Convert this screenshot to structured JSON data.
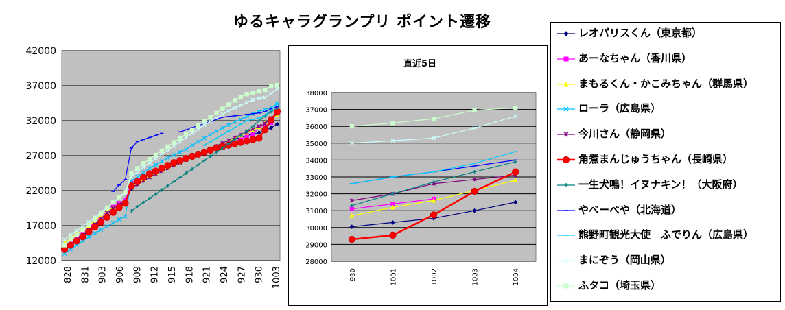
{
  "title": "ゆるキャラグランプリ ポイント遷移",
  "chart_data": [
    {
      "type": "line",
      "title": "",
      "ylim": [
        12000,
        42000
      ],
      "yticks": [
        12000,
        17000,
        22000,
        27000,
        32000,
        37000,
        42000
      ],
      "xtick_labels": [
        "828",
        "831",
        "903",
        "906",
        "909",
        "912",
        "915",
        "918",
        "921",
        "924",
        "927",
        "930",
        "1003"
      ],
      "grid": true,
      "background": "#c0c0c0",
      "series": [
        {
          "name": "レオパリスくん（東京都）",
          "color": "#000080",
          "marker": "diamond",
          "values": [
            13500,
            14200,
            15000,
            15600,
            16200,
            17000,
            17800,
            18600,
            19300,
            19800,
            20300,
            22300,
            23000,
            23600,
            24100,
            24600,
            25000,
            25500,
            25900,
            26200,
            26500,
            26900,
            27200,
            27600,
            28000,
            28300,
            28700,
            29000,
            29300,
            29600,
            29900,
            30100,
            30300,
            30600,
            31000,
            31500
          ]
        },
        {
          "name": "あーなちゃん（香川県）",
          "color": "#ff00ff",
          "marker": "square",
          "values": [
            13800,
            14500,
            15200,
            15900,
            16600,
            17600,
            18300,
            19000,
            19700,
            20200,
            20700,
            23100,
            23500,
            24000,
            24400,
            24800,
            25200,
            25600,
            26000,
            26300,
            26600,
            27000,
            27300,
            27600,
            27900,
            28200,
            28500,
            28800,
            29100,
            29400,
            29700,
            30000,
            31100,
            31400,
            31700,
            33200
          ]
        },
        {
          "name": "まもるくん・かこみちゃん（群馬県）",
          "color": "#ffff00",
          "marker": "triangle",
          "values": [
            14500,
            15200,
            15800,
            16400,
            17000,
            17700,
            18400,
            19100,
            19600,
            20000,
            20400,
            22600,
            23100,
            23600,
            24100,
            24500,
            24900,
            25300,
            25700,
            26100,
            26500,
            26900,
            27300,
            27600,
            28000,
            28300,
            28700,
            29100,
            29500,
            29900,
            30300,
            30700,
            31100,
            31700,
            32200,
            32800
          ]
        },
        {
          "name": "ローラ（広島県）",
          "color": "#00c0ff",
          "marker": "x",
          "values": [
            13000,
            13600,
            14200,
            14800,
            15400,
            15900,
            16400,
            16900,
            17400,
            17900,
            18300,
            23400,
            24000,
            24600,
            25200,
            25700,
            26200,
            26700,
            27100,
            27500,
            27900,
            28500,
            29000,
            29500,
            30000,
            30500,
            31000,
            31400,
            31800,
            32200,
            32600,
            33000,
            33300,
            33600,
            33900,
            34400
          ]
        },
        {
          "name": "今川さん（静岡県）",
          "color": "#800080",
          "marker": "star",
          "values": [
            13600,
            14300,
            15000,
            15700,
            16400,
            17200,
            18000,
            18800,
            19500,
            20000,
            20500,
            22400,
            22900,
            23400,
            23900,
            24400,
            24800,
            25200,
            25600,
            26000,
            26400,
            26800,
            27200,
            27600,
            28000,
            28400,
            28800,
            29200,
            29600,
            30000,
            30400,
            30800,
            31200,
            31600,
            32400,
            33000
          ]
        },
        {
          "name": "角煮まんじゅうちゃん（長崎県）",
          "color": "#ff0000",
          "marker": "circle",
          "values": [
            13600,
            14200,
            14800,
            15400,
            16100,
            16800,
            17500,
            18200,
            18900,
            19600,
            20200,
            22700,
            23300,
            23900,
            24400,
            24800,
            25200,
            25600,
            26000,
            26300,
            26600,
            26900,
            27200,
            27500,
            27800,
            28100,
            28300,
            28500,
            28700,
            28900,
            29100,
            29300,
            29500,
            30700,
            32100,
            33300
          ]
        },
        {
          "name": "一生犬鳴！イヌナキン！（大阪府）",
          "color": "#008080",
          "marker": "plus",
          "values": [
            null,
            null,
            null,
            null,
            null,
            null,
            null,
            null,
            null,
            null,
            null,
            19100,
            19700,
            20300,
            20900,
            21500,
            22100,
            22700,
            23300,
            23900,
            24500,
            25100,
            25700,
            26300,
            26900,
            27500,
            28100,
            28700,
            29300,
            29900,
            30500,
            31200,
            32000,
            32700,
            33300,
            33800
          ]
        },
        {
          "name": "やべーべや（北海道）",
          "color": "#0000ff",
          "marker": "dash",
          "values": [
            null,
            null,
            null,
            null,
            null,
            null,
            null,
            null,
            21900,
            22800,
            23600,
            28100,
            29000,
            29300,
            29600,
            29900,
            30200,
            null,
            null,
            30400,
            30700,
            31000,
            31300,
            31600,
            31900,
            32200,
            32500,
            32600,
            32700,
            32800,
            32900,
            33000,
            33100,
            33300,
            33700,
            34000
          ]
        },
        {
          "name": "熊野町観光大使　ふでりん（広島県）",
          "color": "#00ccff",
          "marker": "dash",
          "values": [
            null,
            null,
            null,
            null,
            null,
            null,
            null,
            null,
            null,
            null,
            null,
            null,
            null,
            null,
            null,
            null,
            null,
            null,
            null,
            null,
            null,
            null,
            null,
            28500,
            29000,
            29500,
            30000,
            30500,
            31000,
            31500,
            32000,
            32200,
            32400,
            32800,
            33500,
            34500
          ]
        },
        {
          "name": "まにぞう（岡山県）",
          "color": "#ccffff",
          "marker": "x",
          "values": [
            15000,
            15700,
            16300,
            16900,
            17500,
            18200,
            18900,
            19600,
            20300,
            21000,
            21600,
            24000,
            24700,
            25400,
            26000,
            26600,
            27200,
            27800,
            28400,
            29000,
            29600,
            30200,
            30800,
            31400,
            31900,
            32400,
            32900,
            33400,
            33800,
            34200,
            34600,
            35000,
            35200,
            35300,
            35900,
            36600
          ]
        },
        {
          "name": "ふタコ（埼玉県）",
          "color": "#ccffcc",
          "marker": "square",
          "values": [
            14200,
            15000,
            15700,
            16400,
            17100,
            17900,
            18700,
            19500,
            20300,
            21100,
            21800,
            24500,
            25200,
            25900,
            26500,
            27100,
            27700,
            28300,
            28900,
            29500,
            30100,
            30700,
            31300,
            31900,
            32500,
            33100,
            33700,
            34300,
            34900,
            35400,
            35800,
            36000,
            36200,
            36400,
            36900,
            37100
          ]
        }
      ]
    },
    {
      "type": "line",
      "title": "直近5日",
      "ylim": [
        28000,
        38000
      ],
      "yticks": [
        28000,
        29000,
        30000,
        31000,
        32000,
        33000,
        34000,
        35000,
        36000,
        37000,
        38000
      ],
      "categories": [
        "930",
        "1001",
        "1002",
        "1003",
        "1004"
      ],
      "grid": true,
      "background": "#c0c0c0",
      "series": [
        {
          "name": "レオパリスくん（東京都）",
          "color": "#000080",
          "marker": "diamond",
          "values": [
            30050,
            30300,
            30550,
            31000,
            31500
          ]
        },
        {
          "name": "あーなちゃん（香川県）",
          "color": "#ff00ff",
          "marker": "square",
          "values": [
            31100,
            31400,
            31700,
            null,
            null
          ]
        },
        {
          "name": "まもるくん・かこみちゃん（群馬県）",
          "color": "#ffff00",
          "marker": "triangle",
          "values": [
            30700,
            31200,
            31600,
            32200,
            32800
          ]
        },
        {
          "name": "ローラ（広島県）",
          "color": "#00c0ff",
          "marker": "x",
          "values": [
            null,
            null,
            null,
            null,
            null
          ]
        },
        {
          "name": "今川さん（静岡県）",
          "color": "#800080",
          "marker": "star",
          "values": [
            31600,
            32000,
            32600,
            32850,
            33100
          ]
        },
        {
          "name": "角煮まんじゅうちゃん（長崎県）",
          "color": "#ff0000",
          "marker": "circle",
          "values": [
            29300,
            29550,
            30750,
            32150,
            33300
          ]
        },
        {
          "name": "一生犬鳴！イヌナキン！（大阪府）",
          "color": "#008080",
          "marker": "plus",
          "values": [
            31300,
            32000,
            32700,
            33300,
            33900
          ]
        },
        {
          "name": "やべーべや（北海道）",
          "color": "#0000ff",
          "marker": "dash",
          "values": [
            32600,
            33000,
            33300,
            33650,
            34000
          ]
        },
        {
          "name": "熊野町観光大使　ふでりん（広島県）",
          "color": "#00ccff",
          "marker": "dash",
          "values": [
            32600,
            33000,
            33300,
            33800,
            34500
          ]
        },
        {
          "name": "まにぞう（岡山県）",
          "color": "#ccffff",
          "marker": "x",
          "values": [
            35000,
            35150,
            35300,
            35900,
            36600
          ]
        },
        {
          "name": "ふタコ（埼玉県）",
          "color": "#ccffcc",
          "marker": "square",
          "values": [
            36000,
            36200,
            36450,
            36950,
            37100
          ]
        }
      ]
    }
  ]
}
